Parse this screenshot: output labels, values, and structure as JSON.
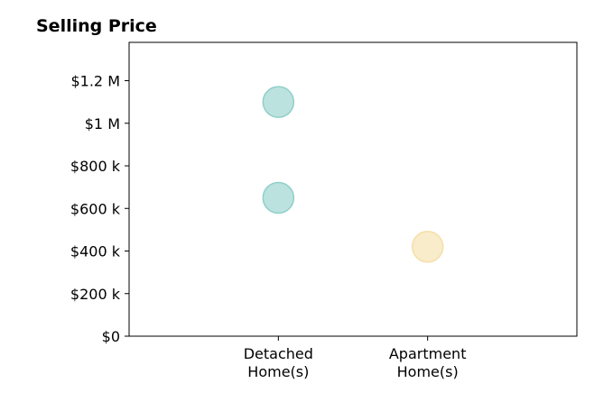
{
  "chart_data": {
    "type": "scatter",
    "title": "Selling Price",
    "xlabel": "",
    "ylabel": "",
    "categories": [
      "Detached\nHome(s)",
      "Apartment\nHome(s)"
    ],
    "xlim": [
      -1,
      2
    ],
    "ylim": [
      0,
      1380000
    ],
    "yticks": [
      {
        "value": 0,
        "label": "$0"
      },
      {
        "value": 200000,
        "label": "$200 k"
      },
      {
        "value": 400000,
        "label": "$400 k"
      },
      {
        "value": 600000,
        "label": "$600 k"
      },
      {
        "value": 800000,
        "label": "$800 k"
      },
      {
        "value": 1000000,
        "label": "$1 M"
      },
      {
        "value": 1200000,
        "label": "$1.2 M"
      }
    ],
    "grid": false,
    "legend": "none",
    "points": [
      {
        "category_index": 0,
        "y": 1100000,
        "color": "#8FCFC9"
      },
      {
        "category_index": 0,
        "y": 650000,
        "color": "#8FCFC9"
      },
      {
        "category_index": 1,
        "y": 420000,
        "color": "#F5DFA9"
      }
    ]
  }
}
